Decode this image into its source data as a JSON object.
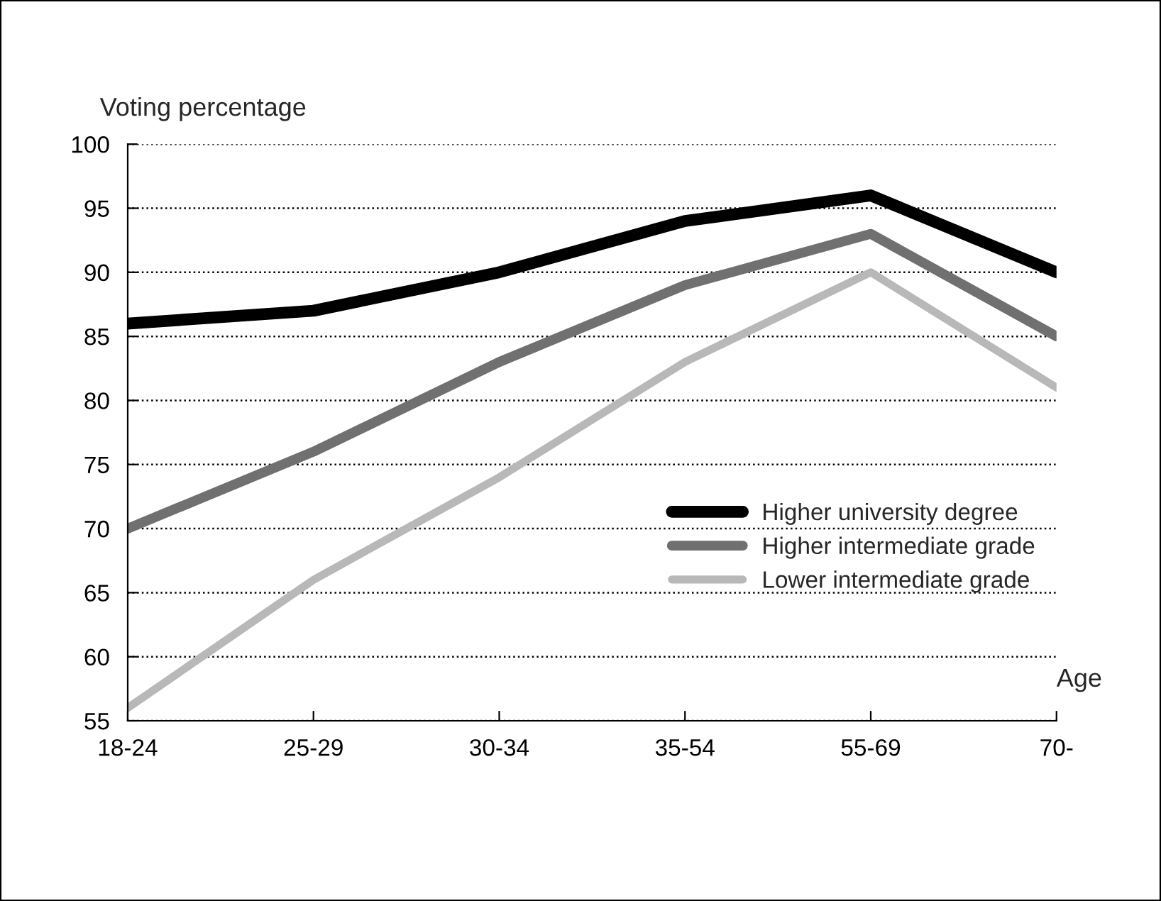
{
  "chart_data": {
    "type": "line",
    "xlabel": "Age",
    "ylabel": "Voting percentage",
    "categories": [
      "18-24",
      "25-29",
      "30-34",
      "35-54",
      "55-69",
      "70-"
    ],
    "series": [
      {
        "name": "Higher university degree",
        "color": "#000000",
        "values": [
          86,
          87,
          90,
          94,
          96,
          90
        ]
      },
      {
        "name": "Higher intermediate grade",
        "color": "#707070",
        "values": [
          70,
          76,
          83,
          89,
          93,
          85
        ]
      },
      {
        "name": "Lower intermediate grade",
        "color": "#b8b8b8",
        "values": [
          56,
          66,
          74,
          83,
          90,
          81
        ]
      }
    ],
    "ylim": [
      55,
      100
    ],
    "yticks": [
      55,
      60,
      65,
      70,
      75,
      80,
      85,
      90,
      95,
      100
    ],
    "grid": "y",
    "legend": "right",
    "line_style": "solid"
  }
}
